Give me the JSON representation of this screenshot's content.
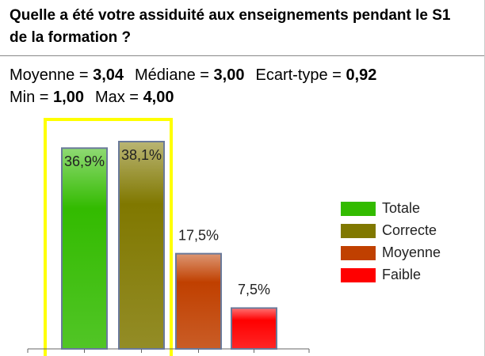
{
  "chart_data": {
    "type": "bar",
    "title": "Quelle a été votre assiduité aux enseignements pendant le S1 de la formation ?",
    "stats": [
      [
        {
          "label": "Moyenne =",
          "value": "3,04"
        },
        {
          "label": "Médiane =",
          "value": "3,00"
        },
        {
          "label": "Ecart-type =",
          "value": "0,92"
        }
      ],
      [
        {
          "label": "Min =",
          "value": "1,00"
        },
        {
          "label": "Max =",
          "value": "4,00"
        }
      ]
    ],
    "categories": [
      "Totale",
      "Correcte",
      "Moyenne",
      "Faible"
    ],
    "values": [
      36.9,
      38.1,
      17.5,
      7.5
    ],
    "value_labels": [
      "36,9%",
      "38,1%",
      "17,5%",
      "7,5%"
    ],
    "colors": [
      "#33bb00",
      "#807800",
      "#c04000",
      "#ff0000"
    ]
  }
}
